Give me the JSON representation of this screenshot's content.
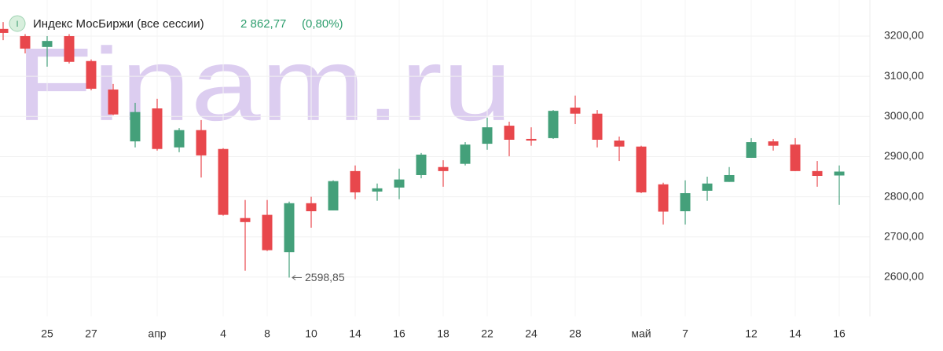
{
  "chart_data": {
    "type": "candlestick",
    "title": "Индекс МосБиржи (все сессии)",
    "icon_label": "I",
    "last_value_label": "2 862,77",
    "change_label": "(0,80%)",
    "watermark": "Finam.ru",
    "categories": [
      null,
      null,
      "25",
      null,
      "27",
      null,
      null,
      "апр",
      null,
      null,
      "4",
      null,
      "8",
      null,
      "10",
      null,
      "14",
      null,
      "16",
      null,
      "18",
      null,
      "22",
      null,
      "24",
      null,
      "28",
      null,
      null,
      "май",
      null,
      "7",
      null,
      null,
      "12",
      null,
      "14",
      null,
      "16"
    ],
    "open": [
      3218,
      3200,
      3173,
      3200,
      3138,
      3067,
      2938,
      3020,
      2923,
      2966,
      2919,
      2747,
      2755,
      2662,
      2784,
      2766,
      2864,
      2813,
      2823,
      2854,
      2874,
      2882,
      2932,
      2977,
      2944,
      2946,
      3022,
      3007,
      2940,
      2925,
      2831,
      2764,
      2815,
      2837,
      2897,
      2938,
      2930,
      2864,
      2853
    ],
    "high": [
      3235,
      3205,
      3200,
      3205,
      3142,
      3081,
      3034,
      3044,
      2971,
      2991,
      2921,
      2792,
      2792,
      2788,
      2800,
      2841,
      2878,
      2833,
      2870,
      2909,
      2891,
      2936,
      2997,
      2987,
      2973,
      3016,
      3052,
      3016,
      2950,
      2927,
      2835,
      2841,
      2850,
      2874,
      2946,
      2944,
      2946,
      2889,
      2878
    ],
    "low": [
      3190,
      3157,
      3124,
      3132,
      3065,
      3003,
      2923,
      2915,
      2911,
      2848,
      2753,
      2616,
      2665,
      2598.85,
      2723,
      2766,
      2794,
      2790,
      2794,
      2846,
      2825,
      2878,
      2917,
      2901,
      2927,
      2944,
      2981,
      2923,
      2889,
      2809,
      2731,
      2731,
      2790,
      2837,
      2897,
      2915,
      2864,
      2825,
      2780
    ],
    "close": [
      3208,
      3169,
      3188,
      3136,
      3069,
      3005,
      3011,
      2919,
      2966,
      2903,
      2755,
      2737,
      2667,
      2784,
      2764,
      2839,
      2811,
      2821,
      2843,
      2905,
      2864,
      2930,
      2973,
      2942,
      2940,
      3014,
      3007,
      2942,
      2925,
      2811,
      2763,
      2809,
      2833,
      2854,
      2936,
      2927,
      2864,
      2852,
      2862.77
    ],
    "up_color": "#44a07a",
    "down_color": "#e8474c",
    "ylim": [
      2502,
      3290
    ],
    "yticks": [
      {
        "value": 2600,
        "label": "2600,00"
      },
      {
        "value": 2700,
        "label": "2700,00"
      },
      {
        "value": 2800,
        "label": "2800,00"
      },
      {
        "value": 2900,
        "label": "2900,00"
      },
      {
        "value": 3000,
        "label": "3000,00"
      },
      {
        "value": 3100,
        "label": "3100,00"
      },
      {
        "value": 3200,
        "label": "3200,00"
      }
    ],
    "grid": true,
    "annotation": {
      "index": 13,
      "label": "2598,85"
    }
  }
}
